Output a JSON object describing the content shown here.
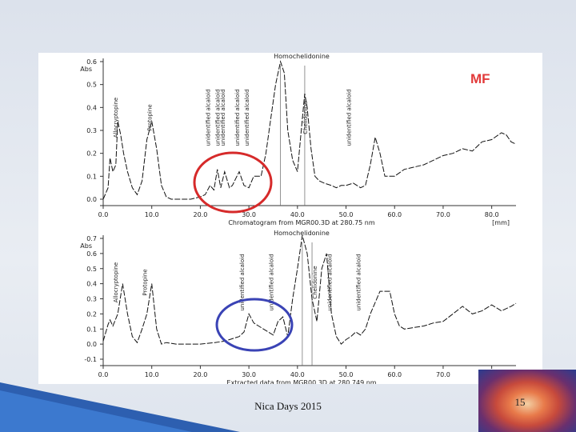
{
  "slide": {
    "footer": "Nica Days 2015",
    "page_number": "15",
    "corner_label": "MF"
  },
  "chart_data": [
    {
      "type": "line",
      "title": "Homochelidonine",
      "xlabel": "Chromatogram from MGR00.3D at 280.75 nm",
      "x_unit": "[mm]",
      "ylabel": "Abs",
      "xlim": [
        0,
        85
      ],
      "ylim": [
        0,
        0.6
      ],
      "x_ticks": [
        "0.0",
        "10.0",
        "20.0",
        "30.0",
        "40.0",
        "50.0",
        "60.0",
        "70.0",
        "80.0"
      ],
      "y_ticks": [
        "0.0",
        "0.1",
        "0.2",
        "0.3",
        "0.4",
        "0.5",
        "0.6"
      ],
      "grid": false,
      "annotations": [
        "Allocryptopine",
        "Protopine",
        "unidentified alcaloid",
        "unidentified alcaloid",
        "unidentified alcaloid",
        "unidentified alcaloid",
        "unidentified alcaloid",
        "Chelidonine",
        "unidentified alcaloid"
      ],
      "annotation_x": [
        3,
        10,
        22,
        24,
        25,
        28,
        30,
        42,
        51
      ],
      "peak_x": [
        36.5,
        41.5
      ],
      "series": [
        {
          "x": [
            0,
            1,
            1.4,
            2,
            2.6,
            3,
            3.6,
            4.2,
            5,
            6,
            7,
            8,
            9,
            10,
            11,
            12,
            13,
            14,
            16,
            18,
            20,
            21,
            22,
            22.8,
            23.5,
            24.2,
            25,
            26,
            26.6,
            27.3,
            28,
            29,
            30,
            31,
            32.5,
            33.5,
            34.5,
            35.5,
            36.5,
            37.3,
            38,
            39,
            40,
            41,
            41.5,
            42,
            42.8,
            43.6,
            44.5,
            45.5,
            47,
            48,
            49,
            50,
            51.5,
            53,
            54,
            55,
            56,
            57,
            58,
            60,
            62,
            64,
            66,
            68,
            70,
            72,
            74,
            76,
            78,
            80,
            82,
            83,
            84,
            85
          ],
          "y": [
            0,
            0.05,
            0.18,
            0.12,
            0.15,
            0.34,
            0.28,
            0.2,
            0.12,
            0.05,
            0.02,
            0.08,
            0.26,
            0.34,
            0.22,
            0.06,
            0.01,
            0,
            0,
            0,
            0.01,
            0.02,
            0.06,
            0.04,
            0.13,
            0.05,
            0.12,
            0.05,
            0.06,
            0.09,
            0.12,
            0.06,
            0.05,
            0.1,
            0.1,
            0.2,
            0.35,
            0.5,
            0.6,
            0.55,
            0.3,
            0.17,
            0.12,
            0.35,
            0.46,
            0.4,
            0.22,
            0.1,
            0.08,
            0.07,
            0.06,
            0.05,
            0.06,
            0.06,
            0.07,
            0.05,
            0.06,
            0.15,
            0.27,
            0.2,
            0.1,
            0.1,
            0.13,
            0.14,
            0.15,
            0.17,
            0.19,
            0.2,
            0.22,
            0.21,
            0.25,
            0.26,
            0.29,
            0.28,
            0.25,
            0.24
          ]
        }
      ]
    },
    {
      "type": "line",
      "title": "Homochelidonine",
      "xlabel": "Extracted data from MGR00.3D at 280.749 nm",
      "x_unit": "[mm]",
      "ylabel": "Abs",
      "xlim": [
        0,
        85
      ],
      "ylim": [
        -0.1,
        0.7
      ],
      "x_ticks": [
        "0.0",
        "10.0",
        "20.0",
        "30.0",
        "40.0",
        "50.0",
        "60.0",
        "70.0",
        "80.0"
      ],
      "y_ticks": [
        "-0.1",
        "0.0",
        "0.1",
        "0.2",
        "0.3",
        "0.4",
        "0.5",
        "0.6",
        "0.7"
      ],
      "grid": false,
      "annotations": [
        "Allocryptopine",
        "Protopine",
        "unidentified alcaloid",
        "unidentified alcaloid",
        "Chelidonine",
        "unidentified alcaloid",
        "unidentified alcaloid"
      ],
      "annotation_x": [
        3,
        9,
        29,
        35,
        44,
        47,
        53
      ],
      "peak_x": [
        41,
        43
      ],
      "series": [
        {
          "x": [
            0,
            1,
            1.4,
            2,
            3,
            4,
            5,
            6,
            7,
            8,
            9,
            10,
            11,
            12,
            13,
            15,
            17,
            20,
            23,
            25,
            27,
            28,
            29,
            30,
            31,
            32,
            33,
            34,
            35,
            36,
            37,
            38,
            39,
            40,
            41,
            42,
            43,
            44,
            45,
            46,
            47,
            48,
            49,
            50,
            51,
            52,
            53,
            54,
            55,
            57,
            59,
            60,
            61,
            62,
            64,
            66,
            68,
            70,
            72,
            74,
            76,
            78,
            80,
            82,
            84,
            85
          ],
          "y": [
            0.02,
            0.13,
            0.16,
            0.12,
            0.2,
            0.4,
            0.2,
            0.05,
            0.01,
            0.1,
            0.2,
            0.4,
            0.1,
            0,
            0.01,
            0,
            0,
            0,
            0.01,
            0.02,
            0.04,
            0.05,
            0.08,
            0.2,
            0.14,
            0.12,
            0.1,
            0.08,
            0.06,
            0.15,
            0.18,
            0.05,
            0.3,
            0.5,
            0.72,
            0.6,
            0.3,
            0.15,
            0.5,
            0.6,
            0.2,
            0.05,
            0.0,
            0.03,
            0.05,
            0.08,
            0.06,
            0.1,
            0.2,
            0.35,
            0.35,
            0.2,
            0.12,
            0.1,
            0.11,
            0.12,
            0.14,
            0.15,
            0.2,
            0.25,
            0.2,
            0.22,
            0.26,
            0.22,
            0.25,
            0.27
          ]
        }
      ]
    }
  ]
}
